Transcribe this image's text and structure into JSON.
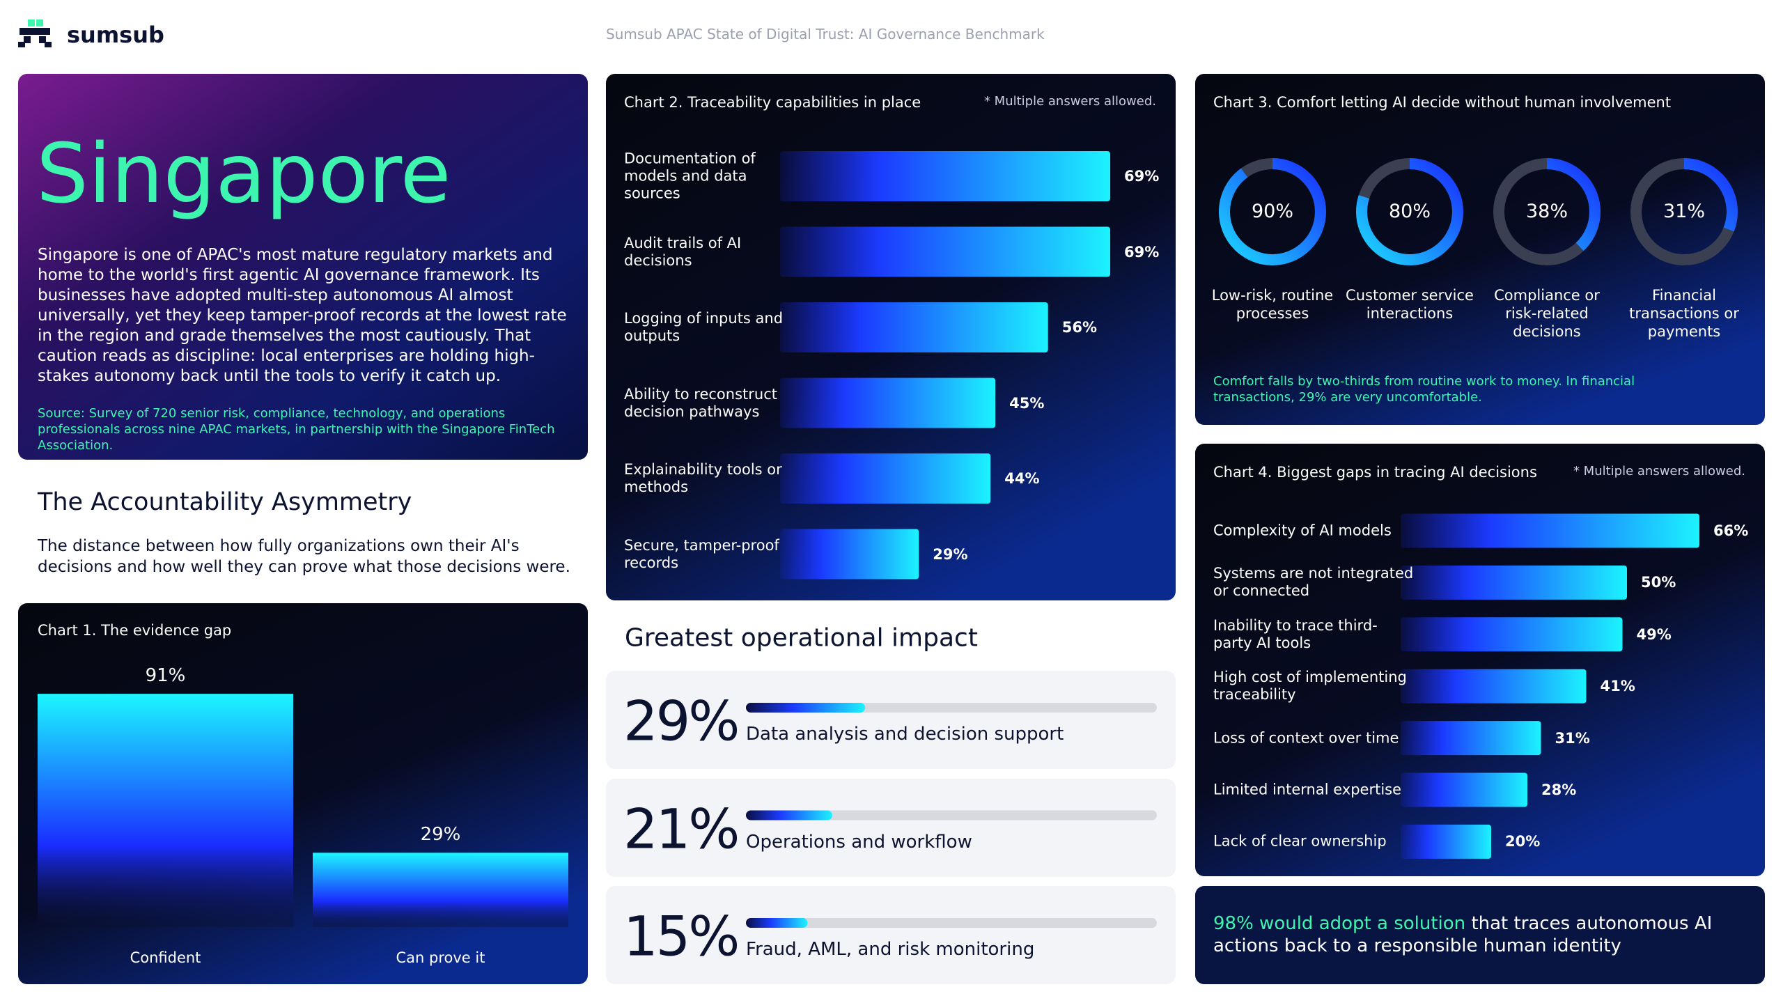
{
  "header": {
    "logo": "sumsub",
    "subtitle": "Sumsub APAC State of Digital Trust: AI Governance Benchmark"
  },
  "intro": {
    "title": "Singapore",
    "body": "Singapore is one of APAC's most mature regulatory markets and home to the world's first agentic AI governance framework. Its businesses have adopted multi-step autonomous AI almost universally, yet they keep tamper-proof records at the lowest rate in the region and grade themselves the most cautiously. That caution reads as discipline: local enterprises are holding high-stakes autonomy back until the tools to verify it catch up.",
    "source": "Source: Survey of 720 senior risk, compliance, technology, and operations professionals across nine APAC markets, in partnership with the Singapore FinTech Association."
  },
  "section": {
    "title": "The Accountability Asymmetry",
    "body": "The distance between how fully organizations own their AI's decisions and how well they can prove what those decisions were."
  },
  "chart_data": [
    {
      "type": "bar",
      "title": "Chart 1. The evidence gap",
      "categories": [
        "Confident",
        "Can prove it"
      ],
      "values": [
        91,
        29
      ],
      "value_labels": [
        "91%",
        "29%"
      ]
    },
    {
      "type": "hbar",
      "title": "Chart 2. Traceability capabilities in place",
      "note": "* Multiple answers allowed.",
      "categories": [
        "Documentation of models and data sources",
        "Audit trails of AI decisions",
        "Logging of inputs and outputs",
        "Ability to reconstruct decision pathways",
        "Explainability tools or methods",
        "Secure, tamper-proof records"
      ],
      "values": [
        69,
        69,
        56,
        45,
        44,
        29
      ],
      "value_labels": [
        "69%",
        "69%",
        "56%",
        "45%",
        "44%",
        "29%"
      ]
    },
    {
      "type": "donut",
      "title": "Chart 3. Comfort letting AI decide without human involvement",
      "categories": [
        "Low-risk, routine processes",
        "Customer service interactions",
        "Compliance or risk-related decisions",
        "Financial transactions or payments"
      ],
      "values": [
        90,
        80,
        38,
        31
      ],
      "value_labels": [
        "90%",
        "80%",
        "38%",
        "31%"
      ],
      "note": "Comfort falls by two-thirds from routine work to money. In financial transactions, 29% are very uncomfortable."
    },
    {
      "type": "hbar",
      "title": "Chart 4. Biggest gaps in tracing AI decisions",
      "note": "* Multiple answers allowed.",
      "categories": [
        "Complexity of AI models",
        "Systems are not integrated or connected",
        "Inability to trace third-party AI tools",
        "High cost of implementing traceability",
        "Loss of context over time",
        "Limited internal expertise",
        "Lack of clear ownership"
      ],
      "values": [
        66,
        50,
        49,
        41,
        31,
        28,
        20
      ],
      "value_labels": [
        "66%",
        "50%",
        "49%",
        "41%",
        "31%",
        "28%",
        "20%"
      ]
    },
    {
      "type": "progress",
      "title": "Greatest operational impact",
      "categories": [
        "Data analysis and decision support",
        "Operations and workflow",
        "Fraud, AML, and risk monitoring"
      ],
      "values": [
        29,
        21,
        15
      ],
      "value_labels": [
        "29%",
        "21%",
        "15%"
      ]
    }
  ],
  "callout": {
    "highlight": "98% would adopt a solution",
    "text": "that traces autonomous AI actions back to a responsible human identity"
  }
}
